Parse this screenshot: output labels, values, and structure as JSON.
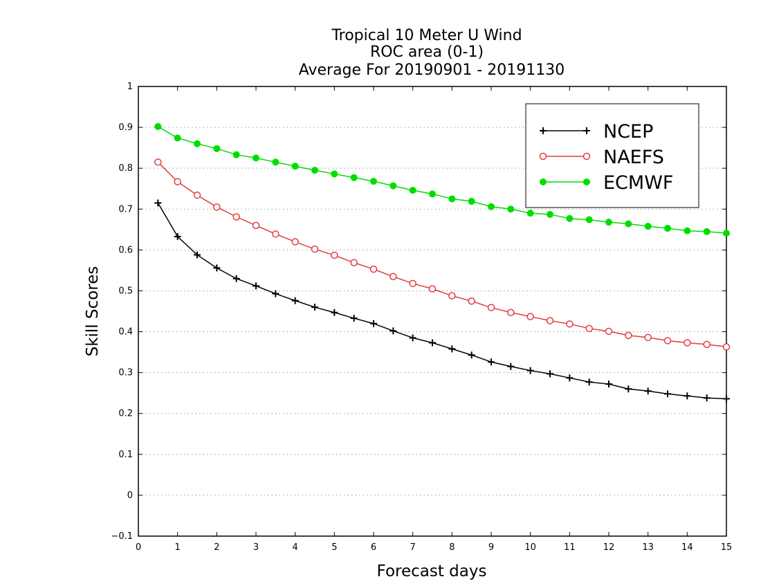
{
  "chart_data": {
    "type": "line",
    "title_lines": [
      "Tropical 10 Meter U Wind",
      "ROC area (0-1)",
      "Average For 20190901 - 20191130"
    ],
    "xlabel": "Forecast days",
    "ylabel": "Skill Scores",
    "xlim": [
      0,
      15
    ],
    "ylim": [
      -0.1,
      1
    ],
    "x_ticks": [
      "0",
      "1",
      "2",
      "3",
      "4",
      "5",
      "6",
      "7",
      "8",
      "9",
      "10",
      "11",
      "12",
      "13",
      "14",
      "15"
    ],
    "y_ticks": [
      "−0.1",
      "0",
      "0.1",
      "0.2",
      "0.3",
      "0.4",
      "0.5",
      "0.6",
      "0.7",
      "0.8",
      "0.9",
      "1"
    ],
    "grid": "horizontal-dotted",
    "legend_position": "top-right",
    "x": [
      0.5,
      1,
      1.5,
      2,
      2.5,
      3,
      3.5,
      4,
      4.5,
      5,
      5.5,
      6,
      6.5,
      7,
      7.5,
      8,
      8.5,
      9,
      9.5,
      10,
      10.5,
      11,
      11.5,
      12,
      12.5,
      13,
      13.5,
      14,
      14.5,
      15
    ],
    "series": [
      {
        "name": "NCEP",
        "color": "#000000",
        "marker": "plus",
        "values": [
          0.715,
          0.633,
          0.588,
          0.556,
          0.53,
          0.512,
          0.493,
          0.476,
          0.46,
          0.447,
          0.433,
          0.42,
          0.402,
          0.385,
          0.373,
          0.358,
          0.343,
          0.326,
          0.315,
          0.305,
          0.297,
          0.287,
          0.277,
          0.272,
          0.26,
          0.255,
          0.248,
          0.243,
          0.238,
          0.236
        ]
      },
      {
        "name": "NAEFS",
        "color": "#e03c3c",
        "marker": "open-circle",
        "values": [
          0.815,
          0.767,
          0.734,
          0.705,
          0.681,
          0.66,
          0.639,
          0.62,
          0.602,
          0.587,
          0.569,
          0.553,
          0.535,
          0.518,
          0.505,
          0.488,
          0.475,
          0.459,
          0.447,
          0.437,
          0.427,
          0.419,
          0.408,
          0.401,
          0.391,
          0.386,
          0.378,
          0.373,
          0.369,
          0.363
        ]
      },
      {
        "name": "ECMWF",
        "color": "#00dd00",
        "marker": "filled-circle",
        "values": [
          0.902,
          0.874,
          0.86,
          0.848,
          0.833,
          0.825,
          0.815,
          0.805,
          0.795,
          0.786,
          0.777,
          0.768,
          0.757,
          0.746,
          0.737,
          0.725,
          0.719,
          0.706,
          0.7,
          0.69,
          0.687,
          0.677,
          0.674,
          0.668,
          0.664,
          0.658,
          0.653,
          0.647,
          0.645,
          0.641
        ]
      }
    ]
  }
}
